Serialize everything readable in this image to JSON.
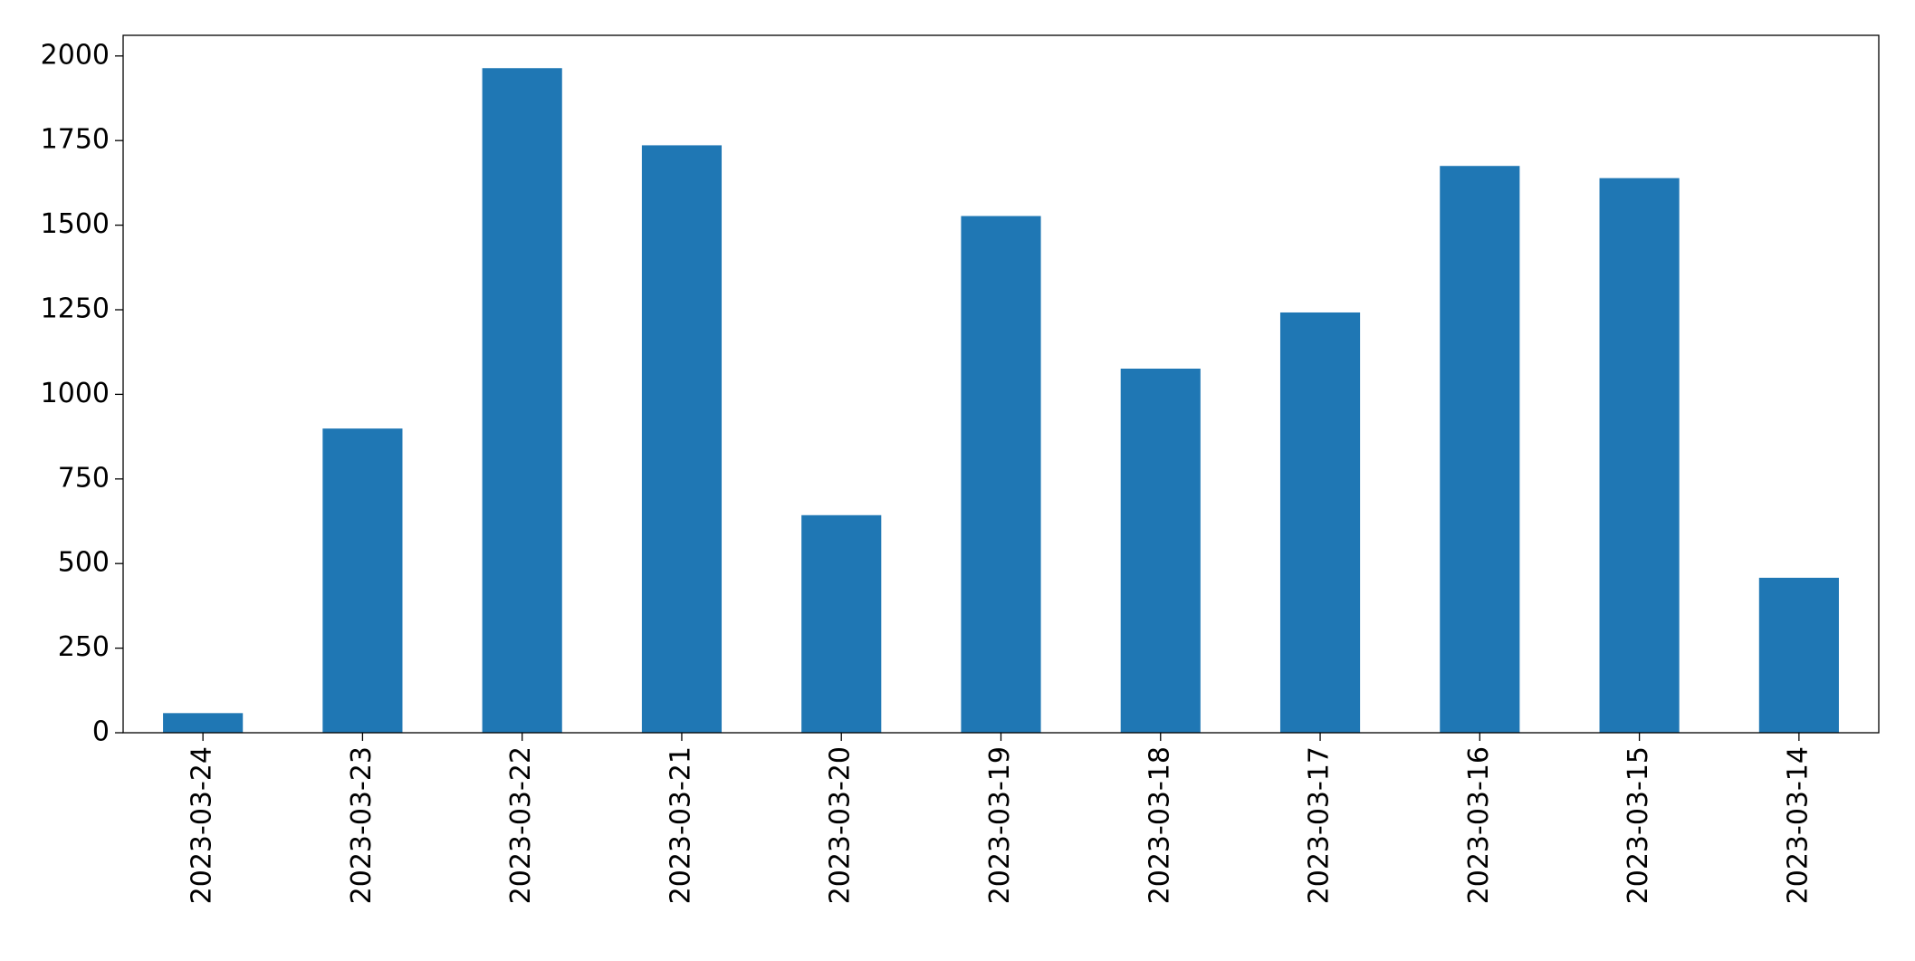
{
  "chart_data": {
    "type": "bar",
    "categories": [
      "2023-03-24",
      "2023-03-23",
      "2023-03-22",
      "2023-03-21",
      "2023-03-20",
      "2023-03-19",
      "2023-03-18",
      "2023-03-17",
      "2023-03-16",
      "2023-03-15",
      "2023-03-14"
    ],
    "values": [
      58,
      899,
      1964,
      1736,
      643,
      1527,
      1076,
      1242,
      1675,
      1639,
      458
    ],
    "color": "#1f77b4",
    "ylim": [
      0,
      2061
    ],
    "yticks": [
      0,
      250,
      500,
      750,
      1000,
      1250,
      1500,
      1750,
      2000
    ],
    "grid": false
  }
}
